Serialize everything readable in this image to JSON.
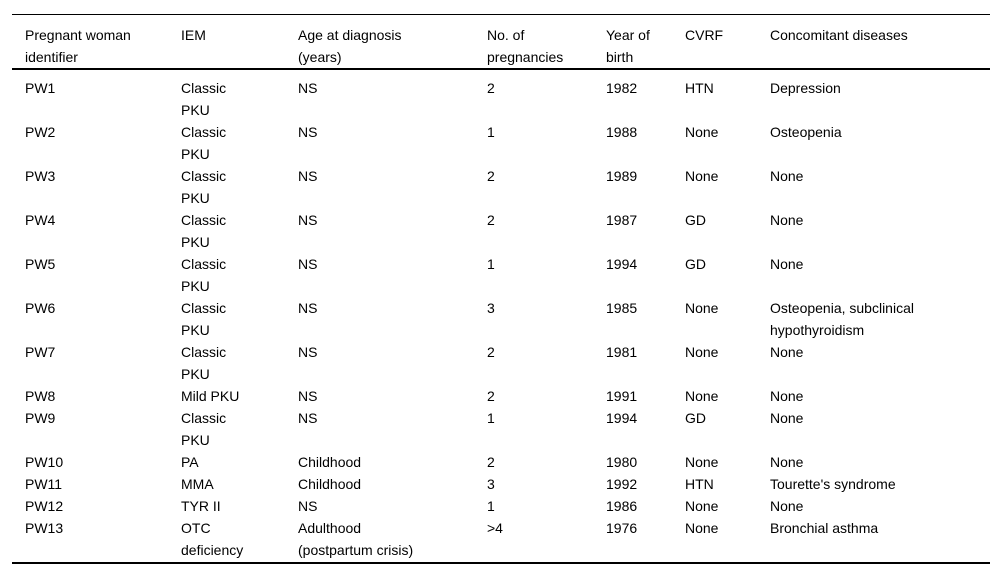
{
  "table": {
    "columns": [
      {
        "label": "Pregnant woman\nidentifier"
      },
      {
        "label": "IEM"
      },
      {
        "label": "Age at diagnosis\n(years)"
      },
      {
        "label": "No. of\npregnancies"
      },
      {
        "label": "Year of\nbirth"
      },
      {
        "label": "CVRF"
      },
      {
        "label": "Concomitant diseases"
      }
    ],
    "rows": [
      [
        "PW1",
        "Classic\nPKU",
        "NS",
        "2",
        "1982",
        "HTN",
        "Depression"
      ],
      [
        "PW2",
        "Classic\nPKU",
        "NS",
        "1",
        "1988",
        "None",
        "Osteopenia"
      ],
      [
        "PW3",
        "Classic\nPKU",
        "NS",
        "2",
        "1989",
        "None",
        "None"
      ],
      [
        "PW4",
        "Classic\nPKU",
        "NS",
        "2",
        "1987",
        "GD",
        "None"
      ],
      [
        "PW5",
        "Classic\nPKU",
        "NS",
        "1",
        "1994",
        "GD",
        "None"
      ],
      [
        "PW6",
        "Classic\nPKU",
        "NS",
        "3",
        "1985",
        "None",
        "Osteopenia, subclinical\nhypothyroidism"
      ],
      [
        "PW7",
        "Classic\nPKU",
        "NS",
        "2",
        "1981",
        "None",
        "None"
      ],
      [
        "PW8",
        "Mild PKU",
        "NS",
        "2",
        "1991",
        "None",
        "None"
      ],
      [
        "PW9",
        "Classic\nPKU",
        "NS",
        "1",
        "1994",
        "GD",
        "None"
      ],
      [
        "PW10",
        "PA",
        "Childhood",
        "2",
        "1980",
        "None",
        "None"
      ],
      [
        "PW11",
        "MMA",
        "Childhood",
        "3",
        "1992",
        "HTN",
        "Tourette's syndrome"
      ],
      [
        "PW12",
        "TYR II",
        "NS",
        "1",
        "1986",
        "None",
        "None"
      ],
      [
        "PW13",
        "OTC\ndeficiency",
        "Adulthood\n(postpartum crisis)",
        ">4",
        "1976",
        "None",
        "Bronchial asthma"
      ]
    ]
  }
}
